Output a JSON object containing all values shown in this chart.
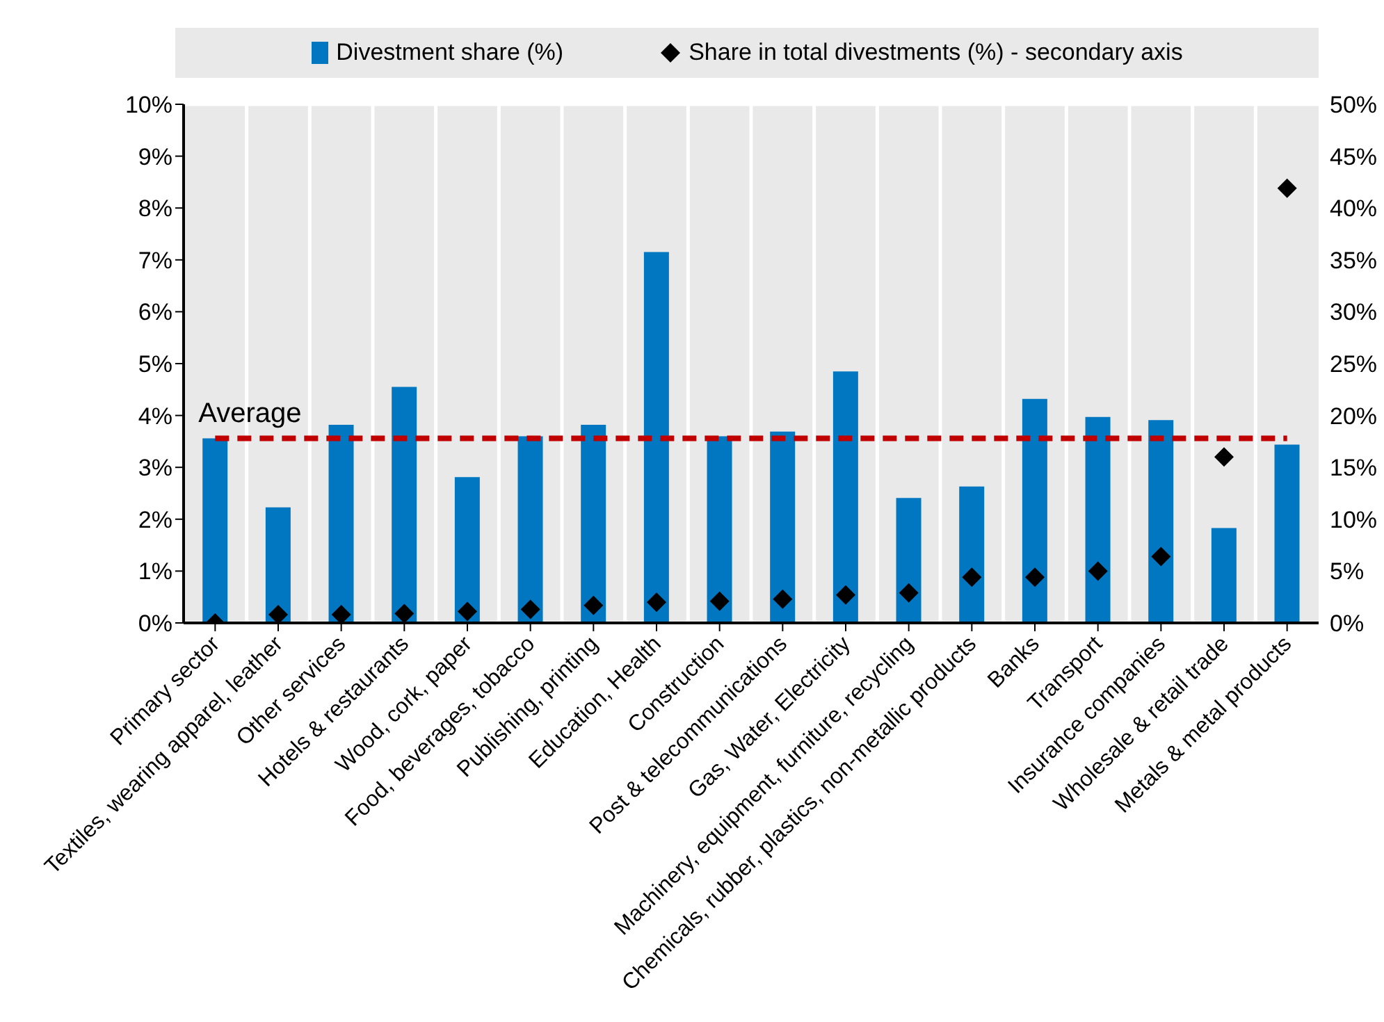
{
  "chart_data": {
    "type": "bar",
    "categories": [
      "Primary sector",
      "Textiles, wearing apparel, leather",
      "Other services",
      "Hotels & restaurants",
      "Wood, cork, paper",
      "Food, beverages, tobacco",
      "Publishing, printing",
      "Education, Health",
      "Construction",
      "Post & telecommunications",
      "Gas, Water, Electricity",
      "Machinery, equipment, furniture, recycling",
      "Chemicals, rubber, plastics, non-metallic products",
      "Banks",
      "Transport",
      "Insurance companies",
      "Wholesale & retail trade",
      "Metals & metal products"
    ],
    "series": [
      {
        "name": "Divestment share (%)",
        "color": "#0077c0",
        "values": [
          3.56,
          2.23,
          3.82,
          4.55,
          2.81,
          3.6,
          3.82,
          7.15,
          3.6,
          3.69,
          4.85,
          2.41,
          2.63,
          4.32,
          3.97,
          3.91,
          1.83,
          3.44
        ]
      },
      {
        "name": "Share in total divestments (%) - secondary axis",
        "type": "scatter",
        "axis": "y2",
        "color": "#000000",
        "values": [
          0,
          0.8,
          0.8,
          0.9,
          1.1,
          1.3,
          1.7,
          2.0,
          2.1,
          2.3,
          2.7,
          2.9,
          4.4,
          4.4,
          5.0,
          6.4,
          16.0,
          41.9
        ]
      }
    ],
    "ylim": [
      0,
      10
    ],
    "yticks": [
      {
        "value": 0,
        "label": "0%"
      },
      {
        "value": 1,
        "label": "1%"
      },
      {
        "value": 2,
        "label": "2%"
      },
      {
        "value": 3,
        "label": "3%"
      },
      {
        "value": 4,
        "label": "4%"
      },
      {
        "value": 5,
        "label": "5%"
      },
      {
        "value": 6,
        "label": "6%"
      },
      {
        "value": 7,
        "label": "7%"
      },
      {
        "value": 8,
        "label": "8%"
      },
      {
        "value": 9,
        "label": "9%"
      },
      {
        "value": 10,
        "label": "10%"
      }
    ],
    "y2lim": [
      0,
      50
    ],
    "y2ticks": [
      {
        "value": 0,
        "label": "0%"
      },
      {
        "value": 5,
        "label": "5%"
      },
      {
        "value": 10,
        "label": "10%"
      },
      {
        "value": 15,
        "label": "15%"
      },
      {
        "value": 20,
        "label": "20%"
      },
      {
        "value": 25,
        "label": "25%"
      },
      {
        "value": 30,
        "label": "30%"
      },
      {
        "value": 35,
        "label": "35%"
      },
      {
        "value": 40,
        "label": "40%"
      },
      {
        "value": 45,
        "label": "45%"
      },
      {
        "value": 50,
        "label": "50%"
      }
    ],
    "ref_lines": [
      {
        "axis": "y",
        "value": 3.56,
        "label": "Average",
        "color": "#c00000",
        "line_style": "dashed"
      }
    ],
    "marker": "diamond",
    "grid": true,
    "legend": "top"
  }
}
